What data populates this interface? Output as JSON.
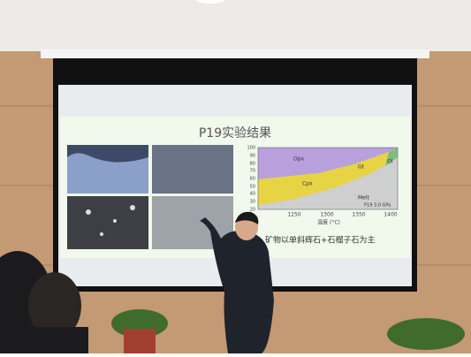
{
  "slide": {
    "title": "P19实验结果",
    "caption": "矿物以单斜辉石+石榴子石为主",
    "diagram": {
      "yticks": [
        "100",
        "90",
        "80",
        "70",
        "60",
        "50",
        "40",
        "30",
        "20"
      ],
      "xticks": [
        "1250",
        "1300",
        "1350",
        "1400"
      ],
      "xlabel": "温度 (°C)",
      "regions": [
        "Opx",
        "Cpx",
        "Gt",
        "Ol",
        "Melt"
      ],
      "legend": "P19 3.0 GPa"
    }
  }
}
